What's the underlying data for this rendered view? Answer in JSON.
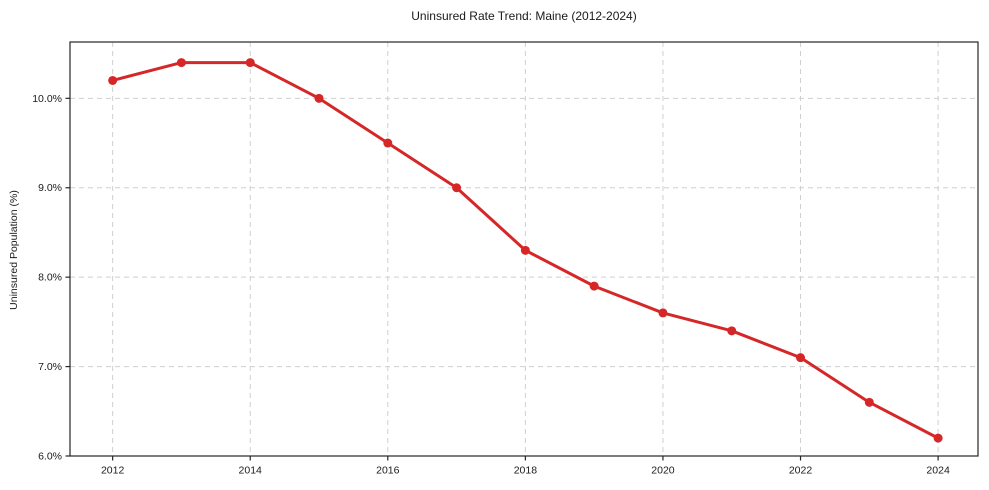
{
  "chart_data": {
    "type": "line",
    "title": "Uninsured Rate Trend: Maine (2012-2024)",
    "xlabel": "",
    "ylabel": "Uninsured Population (%)",
    "x": [
      2012,
      2013,
      2014,
      2015,
      2016,
      2017,
      2018,
      2019,
      2020,
      2021,
      2022,
      2023,
      2024
    ],
    "values": [
      10.2,
      10.4,
      10.4,
      10.0,
      9.5,
      9.0,
      8.3,
      7.9,
      7.6,
      7.4,
      7.1,
      6.6,
      6.2
    ],
    "x_ticks": [
      {
        "value": 2012,
        "label": "2012"
      },
      {
        "value": 2014,
        "label": "2014"
      },
      {
        "value": 2016,
        "label": "2016"
      },
      {
        "value": 2018,
        "label": "2018"
      },
      {
        "value": 2020,
        "label": "2020"
      },
      {
        "value": 2022,
        "label": "2022"
      },
      {
        "value": 2024,
        "label": "2024"
      }
    ],
    "y_ticks": [
      {
        "value": 6.0,
        "label": "6.0%"
      },
      {
        "value": 7.0,
        "label": "7.0%"
      },
      {
        "value": 8.0,
        "label": "8.0%"
      },
      {
        "value": 9.0,
        "label": "9.0%"
      },
      {
        "value": 10.0,
        "label": "10.0%"
      }
    ],
    "xlim": [
      2011.38,
      2024.58
    ],
    "ylim": [
      6.0,
      10.63
    ],
    "grid": true,
    "grid_style": "dashed",
    "legend": "none",
    "colors": {
      "line": "#d62728",
      "marker": "#d62728",
      "grid": "#cfcfcf",
      "spine": "#262626",
      "text": "#1a1a1a",
      "background": "#ffffff"
    }
  }
}
